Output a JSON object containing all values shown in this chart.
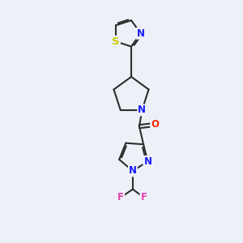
{
  "bg_color": "#edf1f7",
  "bond_color": "#2d2d2d",
  "bond_width": 1.5,
  "atom_colors": {
    "N": "#1a1aff",
    "S": "#cccc00",
    "O": "#ff2200",
    "F": "#e040aa",
    "C": "#2d2d2d"
  },
  "font_size_atom": 8.5,
  "fig_width": 3.0,
  "fig_height": 3.0,
  "dpi": 100,
  "xlim": [
    0,
    10
  ],
  "ylim": [
    0,
    13
  ]
}
